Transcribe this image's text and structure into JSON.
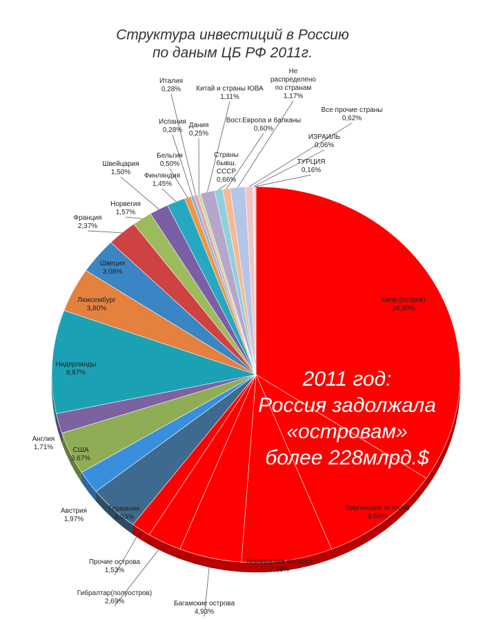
{
  "title_lines": [
    "Структура инвестиций в Россию",
    "по даным ЦБ РФ 2011г."
  ],
  "annotation_lines": [
    "2011 год:",
    "Россия задолжала",
    "«островам»",
    "более 228млрд.$"
  ],
  "chart_data": {
    "type": "pie",
    "title": "Структура инвестиций в Россию по даным ЦБ РФ 2011г.",
    "start": "12 o'clock",
    "direction": "clockwise",
    "slices": [
      {
        "label": "Кипр (остров)",
        "value_text": "34,30%",
        "value": 34.3,
        "color": "#ff0000"
      },
      {
        "label": "Виргинские острова",
        "value_text": "9,66%",
        "value": 9.66,
        "color": "#ff0000"
      },
      {
        "label": "Бермудские острова",
        "value_text": "7,18%",
        "value": 7.18,
        "color": "#ff0000"
      },
      {
        "label": "Багамские острова",
        "value_text": "4,93%",
        "value": 4.93,
        "color": "#ff0000"
      },
      {
        "label": "Гибралтар(полуостров)",
        "value_text": "2,69%",
        "value": 2.69,
        "color": "#ff0000"
      },
      {
        "label": "Прочие острова",
        "value_text": "1,53%",
        "value": 1.53,
        "color": "#ff0000"
      },
      {
        "label": "Германия",
        "value_text": "4,03%",
        "value": 4.03,
        "color": "#3d6a8e"
      },
      {
        "label": "Австрия",
        "value_text": "1,97%",
        "value": 1.97,
        "color": "#3a8fdc"
      },
      {
        "label": "США",
        "value_text": "3,67%",
        "value": 3.67,
        "color": "#8fad55"
      },
      {
        "label": "Англия",
        "value_text": "1,71%",
        "value": 1.71,
        "color": "#7b62a1"
      },
      {
        "label": "Нидерланды",
        "value_text": "8,87%",
        "value": 8.87,
        "color": "#1ba1b4"
      },
      {
        "label": "Люксембург",
        "value_text": "3,80%",
        "value": 3.8,
        "color": "#e4813f"
      },
      {
        "label": "Швеция",
        "value_text": "3,08%",
        "value": 3.08,
        "color": "#3a86c4"
      },
      {
        "label": "Франция",
        "value_text": "2,37%",
        "value": 2.37,
        "color": "#cf4242"
      },
      {
        "label": "Норвегия",
        "value_text": "1,57%",
        "value": 1.57,
        "color": "#9dbb5c"
      },
      {
        "label": "Швейцария",
        "value_text": "1,50%",
        "value": 1.5,
        "color": "#7a5ea6"
      },
      {
        "label": "Финляндия",
        "value_text": "1,45%",
        "value": 1.45,
        "color": "#26a8c0"
      },
      {
        "label": "Бельгия",
        "value_text": "0,50%",
        "value": 0.5,
        "color": "#f0963f"
      },
      {
        "label": "Испания",
        "value_text": "0,28%",
        "value": 0.28,
        "color": "#8eb4e3"
      },
      {
        "label": "Италия",
        "value_text": "0,28%",
        "value": 0.28,
        "color": "#e6a3a3"
      },
      {
        "label": "Дания",
        "value_text": "0,25%",
        "value": 0.25,
        "color": "#c9d9a4"
      },
      {
        "label": "Китай и страны ЮВА",
        "value_text": "1,11%",
        "value": 1.11,
        "color": "#b6a6cc"
      },
      {
        "label": "Страны бывш. СССР",
        "value_text": "0,66%",
        "value": 0.66,
        "color": "#8fd0dc"
      },
      {
        "label": "Вост.Европа и балканы",
        "value_text": "0,60%",
        "value": 0.6,
        "color": "#f8b892"
      },
      {
        "label": "Не распределено по странам",
        "value_text": "1,17%",
        "value": 1.17,
        "color": "#b4c6e7"
      },
      {
        "label": "Все прочие страны",
        "value_text": "0,62%",
        "value": 0.62,
        "color": "#f2c3c3"
      },
      {
        "label": "ИЗРАИЛЬ",
        "value_text": "0,06%",
        "value": 0.06,
        "color": "#dbe6c2"
      },
      {
        "label": "ТУРЦИЯ",
        "value_text": "0,16%",
        "value": 0.16,
        "color": "#d7cfe4"
      }
    ]
  }
}
